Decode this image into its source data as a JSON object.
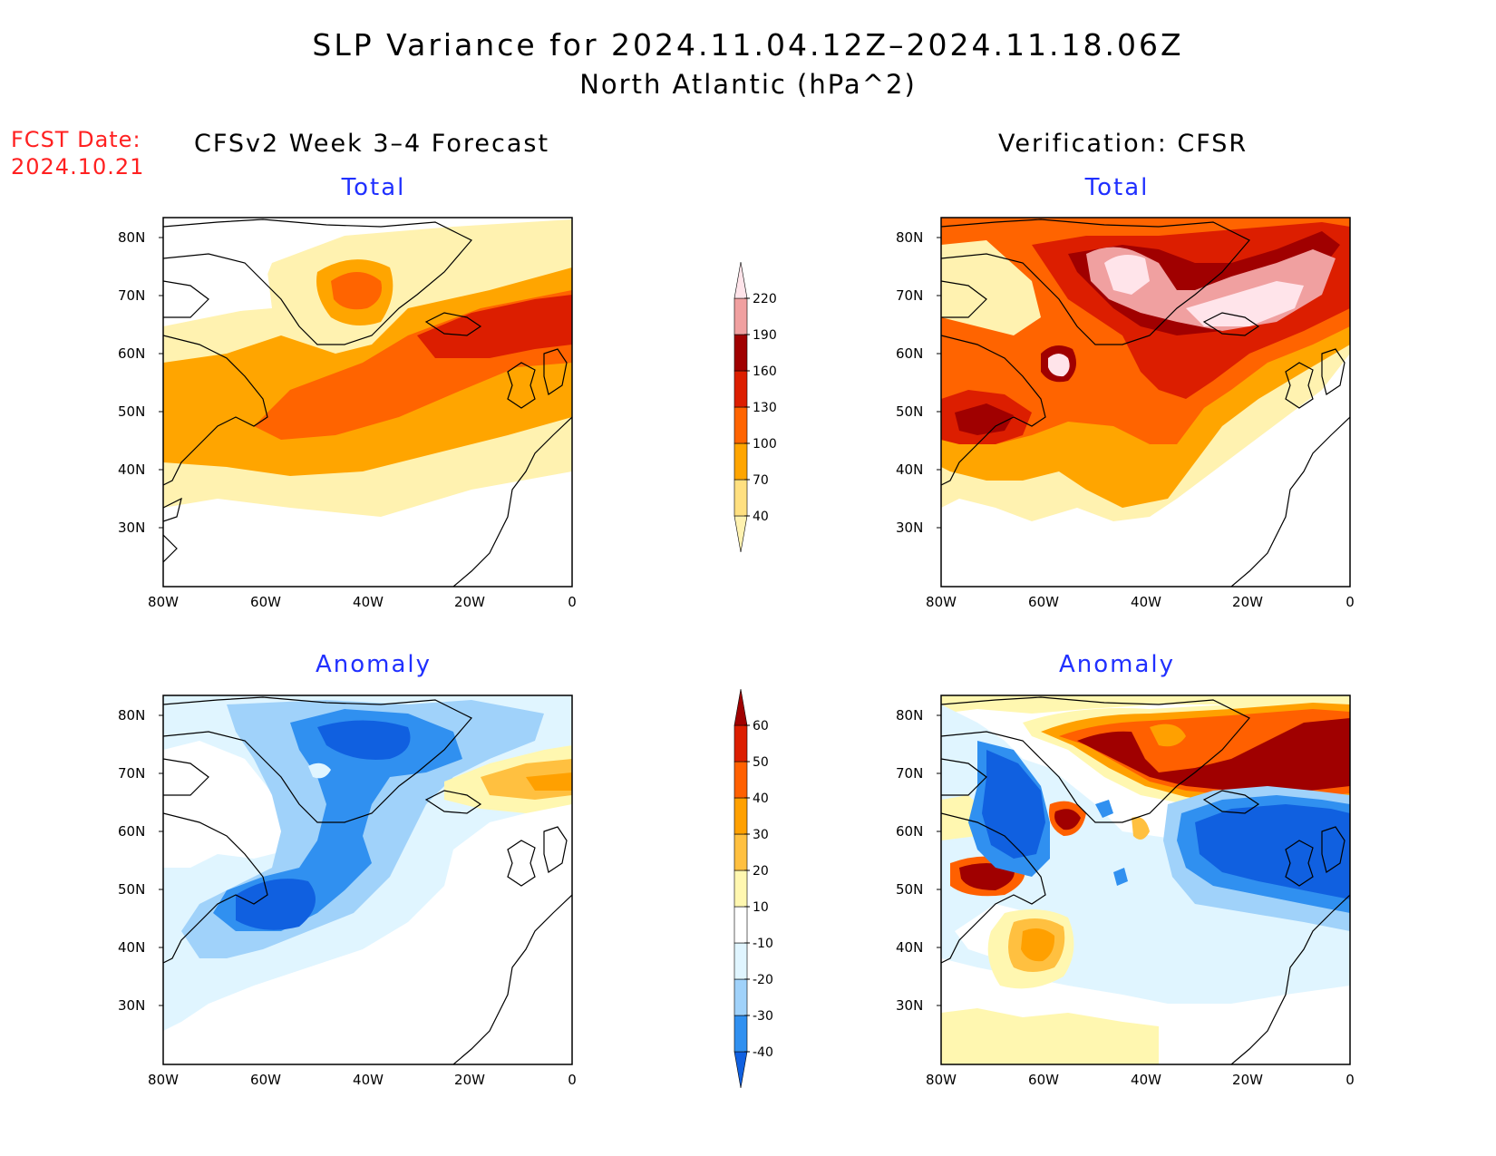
{
  "title": {
    "line1": "SLP Variance for 2024.11.04.12Z–2024.11.18.06Z",
    "line2": "North Atlantic (hPa^2)"
  },
  "fcst_date": {
    "label": "FCST Date:",
    "value": "2024.10.21"
  },
  "columns": {
    "left": "CFSv2 Week 3–4 Forecast",
    "right": "Verification: CFSR"
  },
  "panels": {
    "forecast_total": "Total",
    "forecast_anomaly": "Anomaly",
    "verif_total": "Total",
    "verif_anomaly": "Anomaly"
  },
  "axes": {
    "lat_labels": [
      "80N",
      "70N",
      "60N",
      "50N",
      "40N",
      "30N"
    ],
    "lon_labels": [
      "80W",
      "60W",
      "40W",
      "20W",
      "0"
    ]
  },
  "colorbar_total": {
    "labels": [
      "40",
      "70",
      "100",
      "130",
      "160",
      "190",
      "220"
    ],
    "colors": [
      "#fff2b0",
      "#ffe080",
      "#ffa500",
      "#ff6400",
      "#dc1e00",
      "#a00000",
      "#f0a0a0",
      "#ffe4ea"
    ]
  },
  "colorbar_anomaly": {
    "labels": [
      "-40",
      "-30",
      "-20",
      "-10",
      "10",
      "20",
      "30",
      "40",
      "50",
      "60"
    ],
    "colors": [
      "#1060e0",
      "#3090f0",
      "#a0d2fa",
      "#e0f5ff",
      "#ffffff",
      "#fff7b0",
      "#ffc040",
      "#ffa000",
      "#ff6000",
      "#dc1e00",
      "#a00000"
    ]
  }
}
